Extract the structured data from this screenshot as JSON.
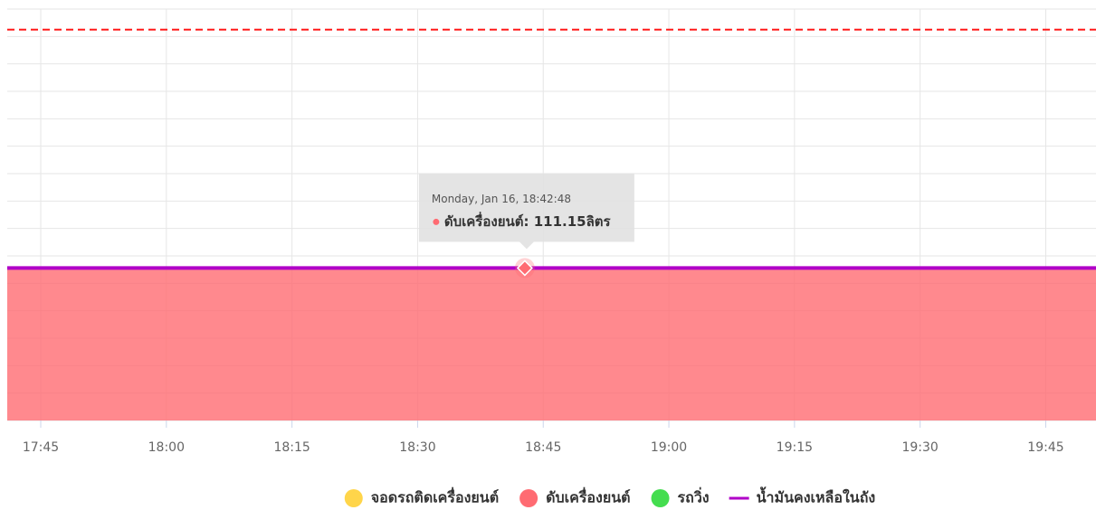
{
  "chart_data": {
    "type": "area",
    "x": [
      1061,
      1191
    ],
    "xlim": [
      1061,
      1191
    ],
    "xticks": [
      {
        "value": 1065,
        "label": "17:45"
      },
      {
        "value": 1080,
        "label": "18:00"
      },
      {
        "value": 1095,
        "label": "18:15"
      },
      {
        "value": 1110,
        "label": "18:30"
      },
      {
        "value": 1125,
        "label": "18:45"
      },
      {
        "value": 1140,
        "label": "19:00"
      },
      {
        "value": 1155,
        "label": "19:15"
      },
      {
        "value": 1170,
        "label": "19:30"
      },
      {
        "value": 1185,
        "label": "19:45"
      }
    ],
    "ylim": [
      0,
      300
    ],
    "yticks": [
      0,
      20,
      40,
      60,
      80,
      100,
      120,
      140,
      160,
      180,
      200,
      220,
      240,
      260,
      280,
      300
    ],
    "grid": true,
    "plot_lines": [
      {
        "value": 285,
        "color": "#ff1a1a",
        "dash": true
      }
    ],
    "series": [
      {
        "name": "จอดรถติดเครื่องยนต์",
        "color": "#ffd54a",
        "kind": "area",
        "values": [
          null,
          null
        ]
      },
      {
        "name": "ดับเครื่องยนต์",
        "color": "#ff6b72",
        "kind": "area",
        "values": [
          111.15,
          111.15
        ]
      },
      {
        "name": "รถวิ่ง",
        "color": "#44dd4f",
        "kind": "area",
        "values": [
          null,
          null
        ]
      },
      {
        "name": "น้ำมันคงเหลือในถัง",
        "color": "#b000c8",
        "kind": "line",
        "values": [
          111.15,
          111.15
        ]
      }
    ],
    "legend": "bottom",
    "tooltip": {
      "x": 1122.8,
      "series": 1,
      "header": "Monday, Jan 16, 18:42:48",
      "text": "ดับเครื่องยนต์: 111.15ลิตร"
    }
  }
}
